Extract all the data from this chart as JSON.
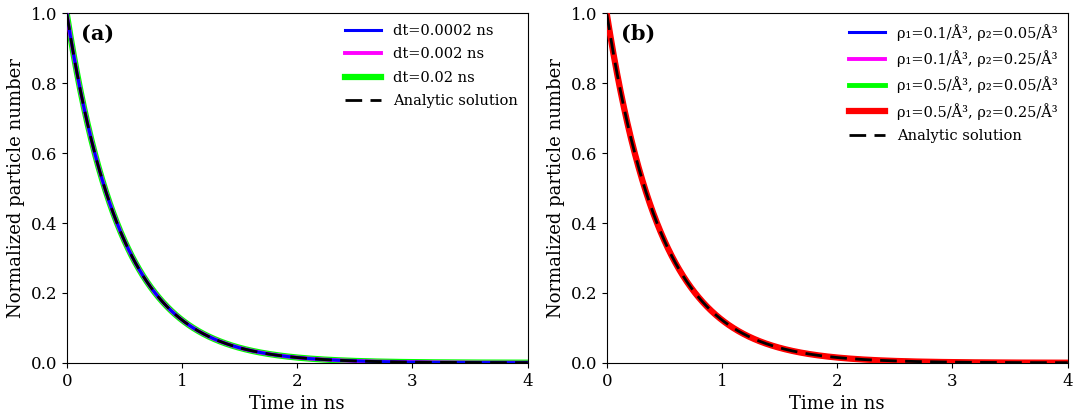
{
  "panel_a_label": "(a)",
  "panel_b_label": "(b)",
  "xlabel": "Time in ns",
  "ylabel": "Normalized particle number",
  "xlim": [
    0,
    4
  ],
  "ylim": [
    0,
    1
  ],
  "xticks": [
    0,
    1,
    2,
    3,
    4
  ],
  "yticks": [
    0,
    0.2,
    0.4,
    0.6,
    0.8,
    1
  ],
  "panel_a_lines": [
    {
      "label": "dt=0.0002 ns",
      "color": "#0000ff",
      "lw": 2.2,
      "decay": 2.1,
      "zorder": 4
    },
    {
      "label": "dt=0.002 ns",
      "color": "#ff00ff",
      "lw": 2.8,
      "decay": 2.1,
      "zorder": 3
    },
    {
      "label": "dt=0.02 ns",
      "color": "#00ff00",
      "lw": 4.5,
      "decay": 2.1,
      "zorder": 2
    }
  ],
  "panel_b_lines": [
    {
      "label": "ρ₁=0.1/Å³, ρ₂=0.05/Å³",
      "color": "#0000ff",
      "lw": 2.2,
      "decay": 2.1,
      "zorder": 2
    },
    {
      "label": "ρ₁=0.1/Å³, ρ₂=0.25/Å³",
      "color": "#ff00ff",
      "lw": 2.8,
      "decay": 2.1,
      "zorder": 3
    },
    {
      "label": "ρ₁=0.5/Å³, ρ₂=0.05/Å³",
      "color": "#00ff00",
      "lw": 3.5,
      "decay": 2.1,
      "zorder": 4
    },
    {
      "label": "ρ₁=0.5/Å³, ρ₂=0.25/Å³",
      "color": "#ff0000",
      "lw": 4.5,
      "decay": 2.1,
      "zorder": 5
    }
  ],
  "analytic_decay": 2.1,
  "analytic_label": "Analytic solution",
  "analytic_color": "#000000",
  "analytic_lw": 2.0,
  "legend_fontsize": 10.5,
  "axis_fontsize": 13,
  "tick_fontsize": 12,
  "panel_label_fontsize": 15
}
